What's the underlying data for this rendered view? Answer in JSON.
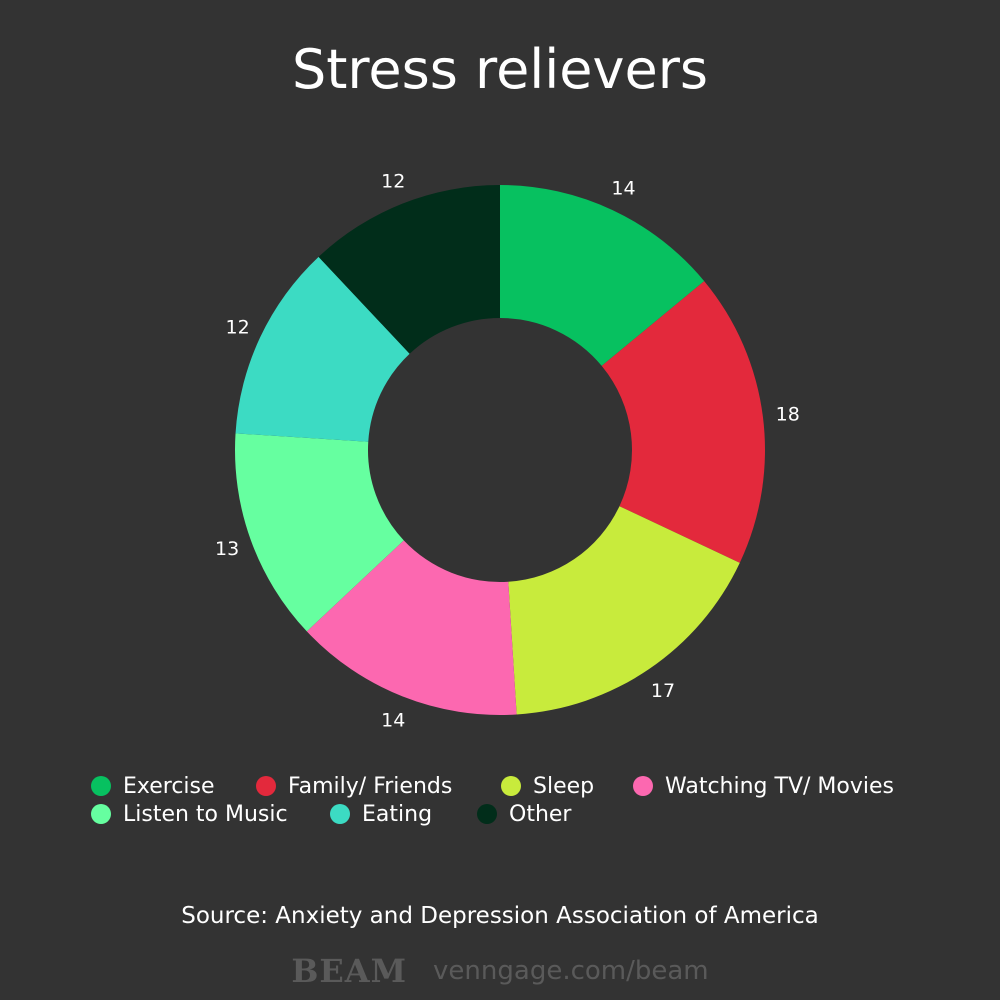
{
  "chart_data": {
    "type": "pie",
    "variant": "donut",
    "title": "Stress relievers",
    "categories": [
      "Exercise",
      "Family/ Friends",
      "Sleep",
      "Watching TV/ Movies",
      "Listen to Music",
      "Eating",
      "Other"
    ],
    "values": [
      14,
      18,
      17,
      14,
      13,
      12,
      12
    ],
    "colors": [
      "#07c160",
      "#e3293c",
      "#c8eb3c",
      "#fc68b0",
      "#66ffa0",
      "#3cdbc3",
      "#012d1a"
    ],
    "legend_position": "bottom"
  },
  "source": "Source: Anxiety and Depression Association of America",
  "footer": {
    "logo": "BEAM",
    "url": "venngage.com/beam"
  }
}
